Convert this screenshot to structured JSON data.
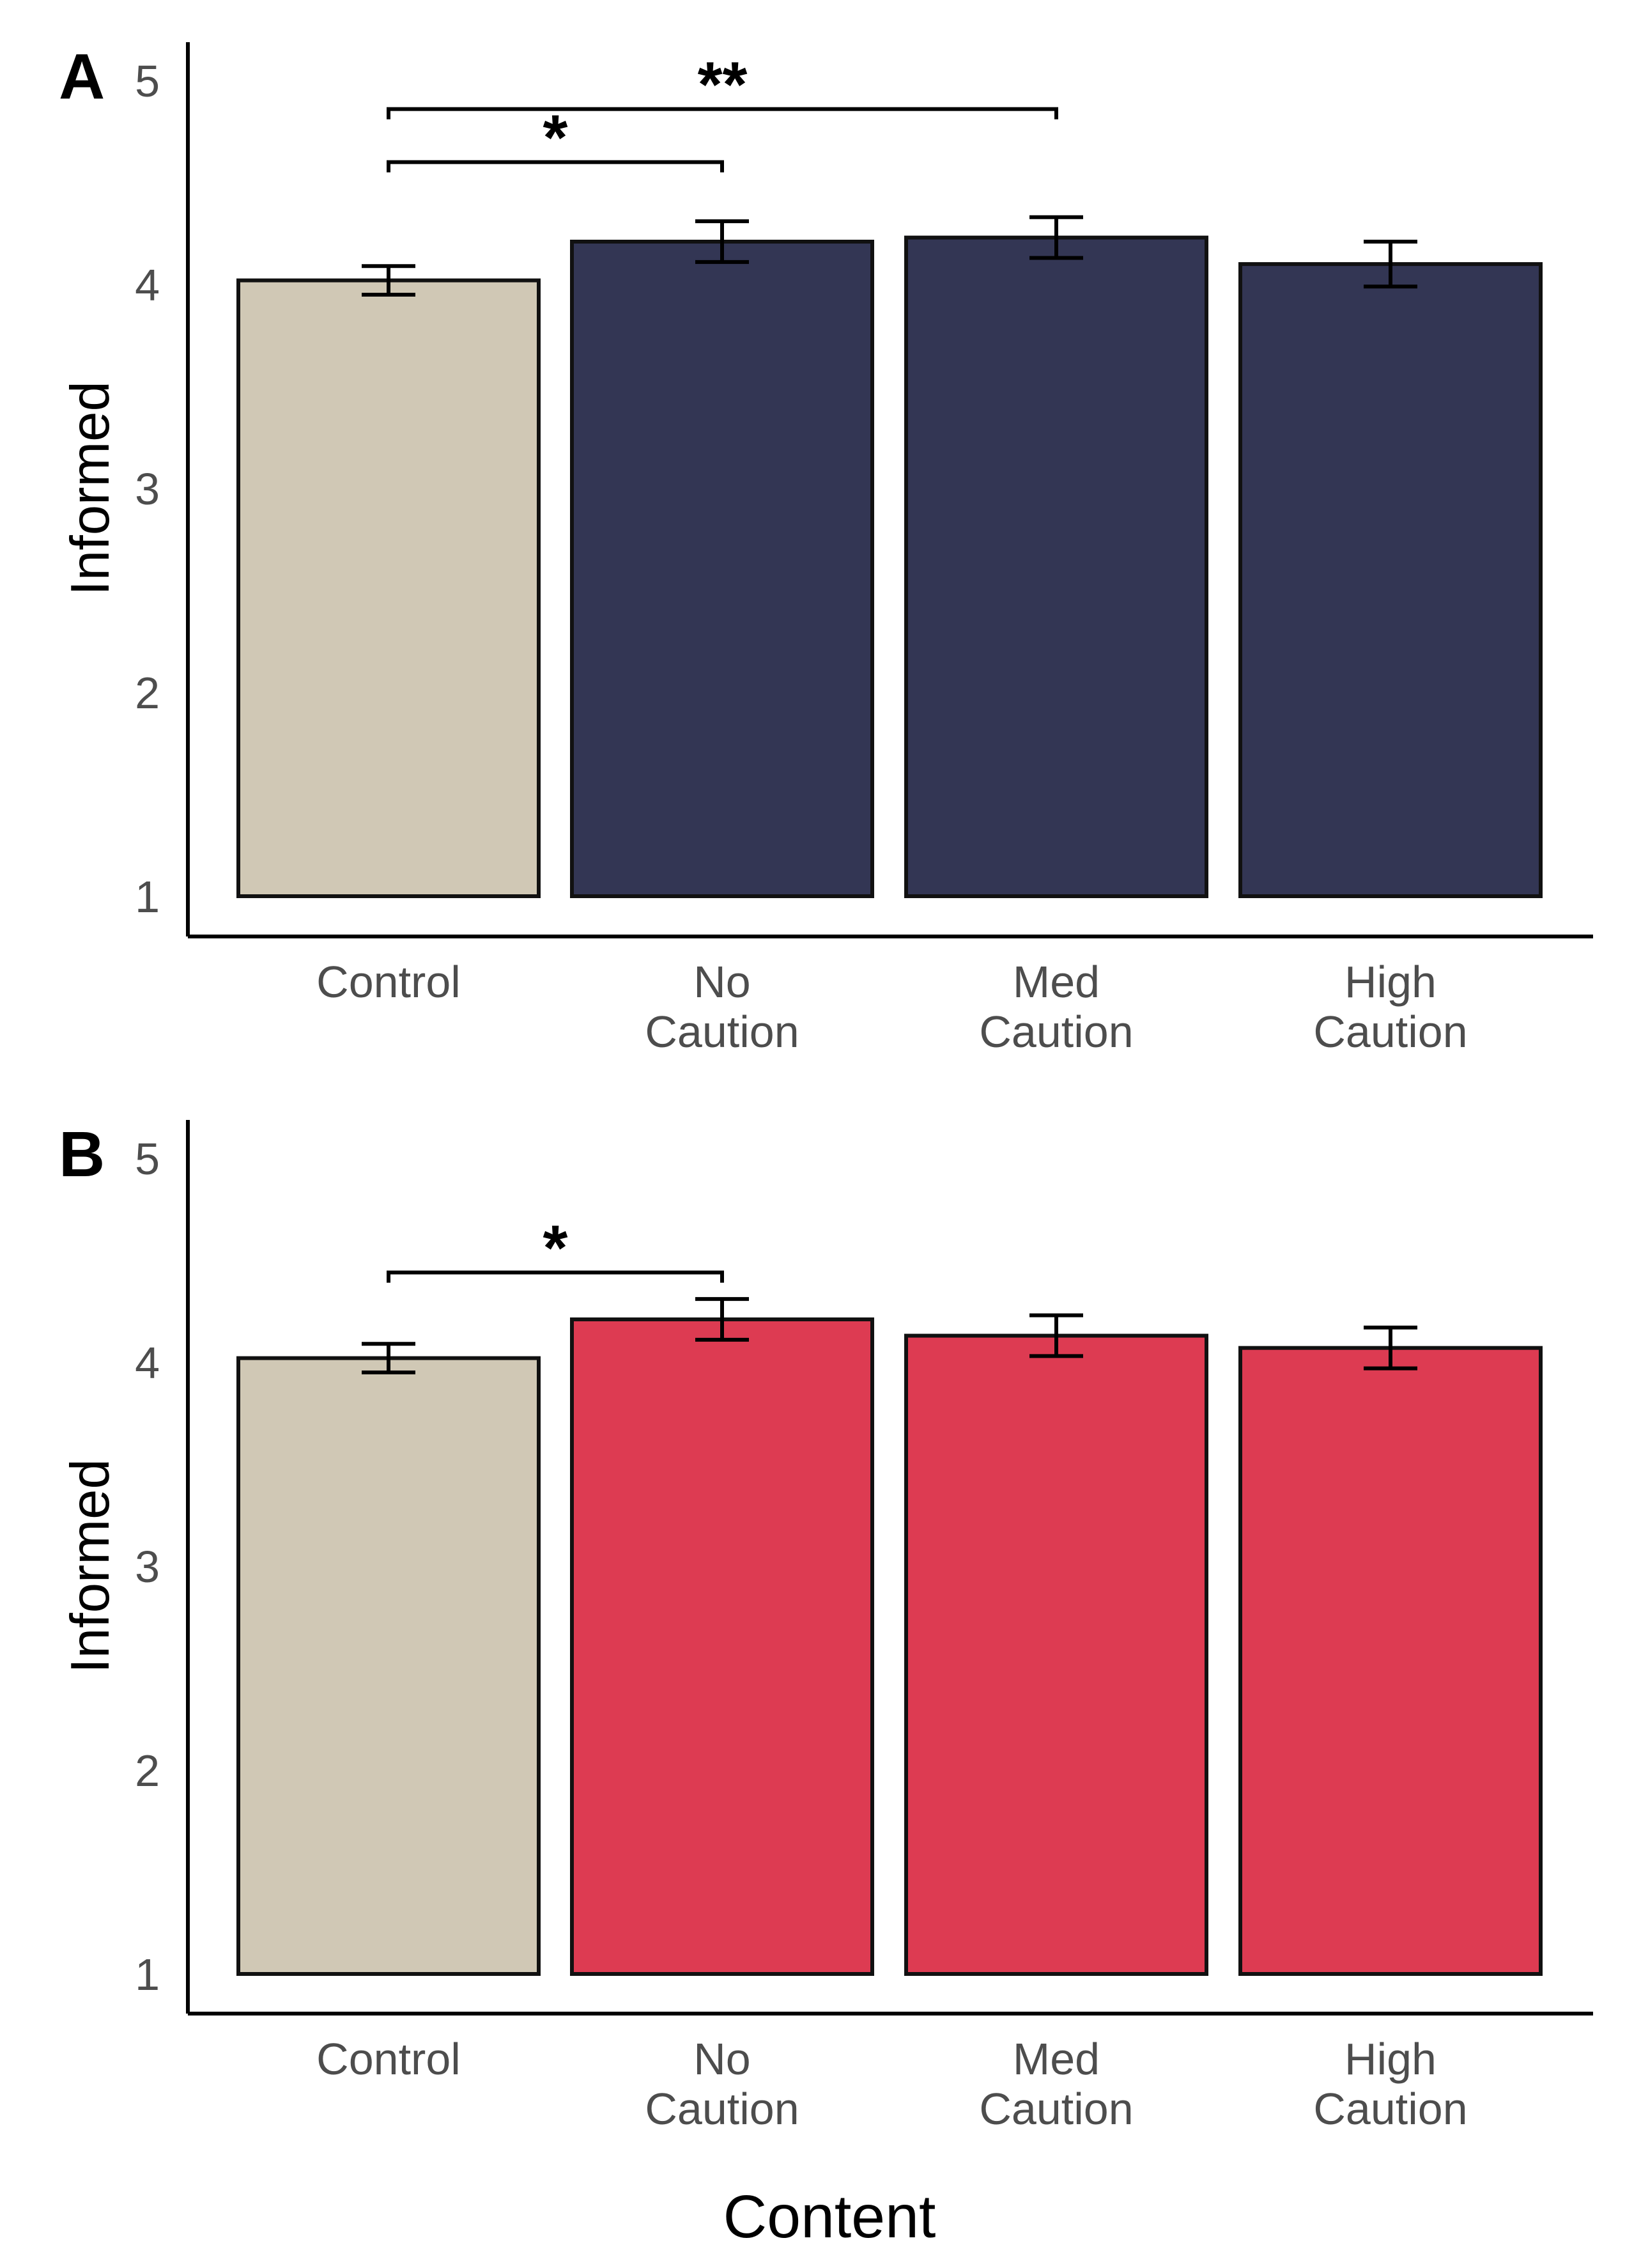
{
  "xlabel": "Content",
  "chart_data": [
    {
      "type": "bar",
      "panel_label": "A",
      "ylabel": "Informed",
      "ylim": [
        1,
        5
      ],
      "yticks": [
        "1",
        "2",
        "3",
        "4",
        "5"
      ],
      "categories": [
        [
          "Control"
        ],
        [
          "No",
          "Caution"
        ],
        [
          "Med",
          "Caution"
        ],
        [
          "High",
          "Caution"
        ]
      ],
      "values": [
        4.02,
        4.21,
        4.23,
        4.1
      ],
      "error": [
        0.07,
        0.1,
        0.1,
        0.11
      ],
      "colors": [
        "#d0c8b5",
        "#333654",
        "#333654",
        "#333654"
      ],
      "significance": [
        {
          "from": 0,
          "to": 1,
          "label": "*",
          "y": 4.6
        },
        {
          "from": 0,
          "to": 2,
          "label": "**",
          "y": 4.86
        }
      ],
      "grid": false
    },
    {
      "type": "bar",
      "panel_label": "B",
      "ylabel": "Informed",
      "ylim": [
        1,
        5
      ],
      "yticks": [
        "1",
        "2",
        "3",
        "4",
        "5"
      ],
      "categories": [
        [
          "Control"
        ],
        [
          "No",
          "Caution"
        ],
        [
          "Med",
          "Caution"
        ],
        [
          "High",
          "Caution"
        ]
      ],
      "values": [
        4.02,
        4.21,
        4.13,
        4.07
      ],
      "error": [
        0.07,
        0.1,
        0.1,
        0.1
      ],
      "colors": [
        "#d0c8b5",
        "#dd3b52",
        "#dd3b52",
        "#dd3b52"
      ],
      "significance": [
        {
          "from": 0,
          "to": 1,
          "label": "*",
          "y": 4.44
        }
      ],
      "grid": false
    }
  ]
}
